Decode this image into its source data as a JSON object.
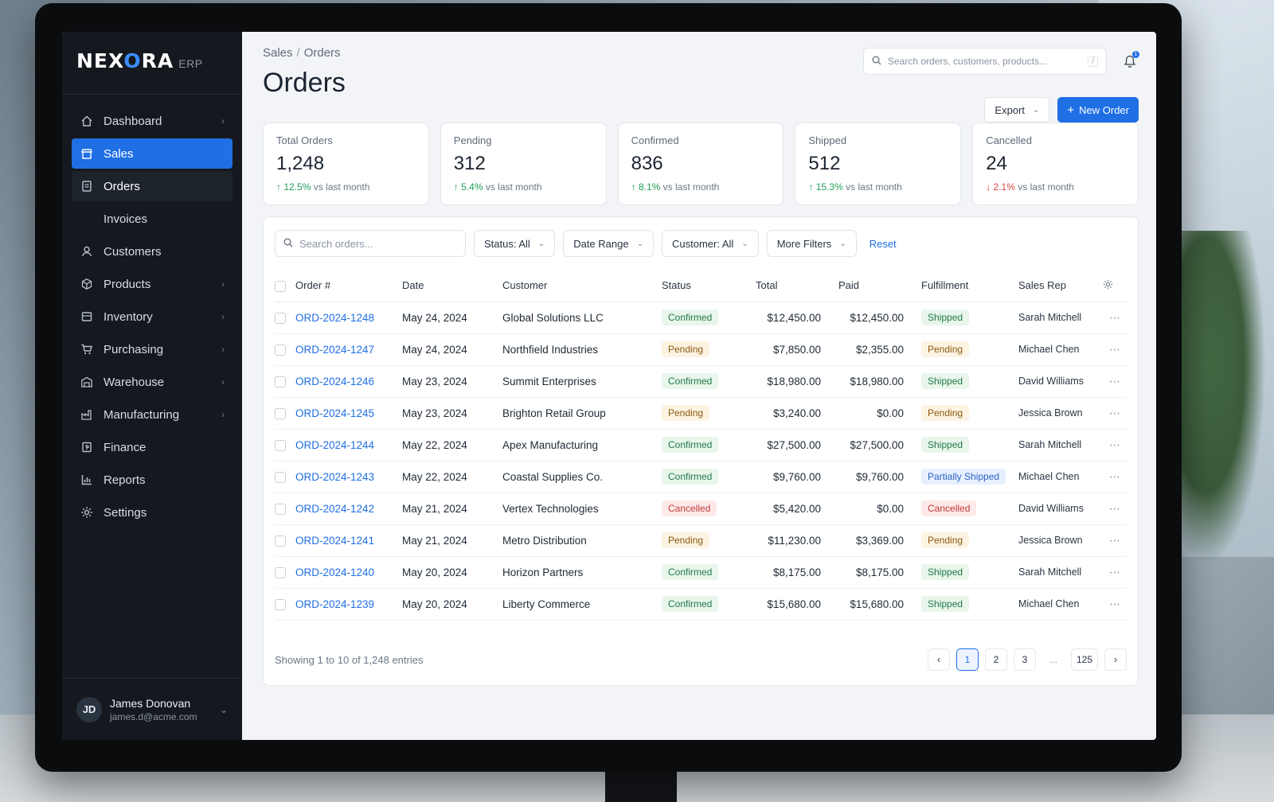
{
  "app": {
    "logo_name_1": "NEX",
    "logo_name_o": "O",
    "logo_name_2": "RA",
    "logo_sub": "ERP"
  },
  "sidebar": {
    "items": [
      {
        "label": "Dashboard",
        "icon": "home-icon"
      },
      {
        "label": "Sales",
        "icon": "store-icon"
      },
      {
        "label": "Orders",
        "icon": "document-icon"
      },
      {
        "label": "Invoices",
        "icon": ""
      },
      {
        "label": "Customers",
        "icon": "user-icon"
      },
      {
        "label": "Products",
        "icon": "box-icon"
      },
      {
        "label": "Inventory",
        "icon": "inventory-icon"
      },
      {
        "label": "Purchasing",
        "icon": "cart-icon"
      },
      {
        "label": "Warehouse",
        "icon": "warehouse-icon"
      },
      {
        "label": "Manufacturing",
        "icon": "factory-icon"
      },
      {
        "label": "Finance",
        "icon": "bank-icon"
      },
      {
        "label": "Reports",
        "icon": "chart-icon"
      },
      {
        "label": "Settings",
        "icon": "gear-icon"
      }
    ],
    "user": {
      "initials": "JD",
      "name": "James Donovan",
      "email": "james.d@acme.com"
    }
  },
  "header": {
    "breadcrumb_parent": "Sales",
    "breadcrumb_sep": "/",
    "breadcrumb_current": "Orders",
    "title": "Orders",
    "search_placeholder": "Search orders, customers, products...",
    "search_shortcut": "/",
    "notifications": "1",
    "export_label": "Export",
    "new_order_label": "New Order"
  },
  "stats": [
    {
      "label": "Total Orders",
      "value": "1,248",
      "trend": "12.5%",
      "trend_dir": "up",
      "suffix": "vs last month"
    },
    {
      "label": "Pending",
      "value": "312",
      "trend": "5.4%",
      "trend_dir": "up",
      "suffix": "vs last month"
    },
    {
      "label": "Confirmed",
      "value": "836",
      "trend": "8.1%",
      "trend_dir": "up",
      "suffix": "vs last month"
    },
    {
      "label": "Shipped",
      "value": "512",
      "trend": "15.3%",
      "trend_dir": "up",
      "suffix": "vs last month"
    },
    {
      "label": "Cancelled",
      "value": "24",
      "trend": "2.1%",
      "trend_dir": "down",
      "suffix": "vs last month"
    }
  ],
  "filters": {
    "search_placeholder": "Search orders...",
    "status": "Status: All",
    "date_range": "Date Range",
    "customer": "Customer: All",
    "more": "More Filters",
    "reset": "Reset"
  },
  "table": {
    "columns": [
      "Order #",
      "Date",
      "Customer",
      "Status",
      "Total",
      "Paid",
      "Fulfillment",
      "Sales Rep"
    ],
    "rows": [
      {
        "order": "ORD-2024-1248",
        "date": "May 24, 2024",
        "customer": "Global Solutions LLC",
        "status": "Confirmed",
        "total": "$12,450.00",
        "paid": "$12,450.00",
        "fulfillment": "Shipped",
        "rep": "Sarah Mitchell"
      },
      {
        "order": "ORD-2024-1247",
        "date": "May 24, 2024",
        "customer": "Northfield Industries",
        "status": "Pending",
        "total": "$7,850.00",
        "paid": "$2,355.00",
        "fulfillment": "Pending",
        "rep": "Michael Chen"
      },
      {
        "order": "ORD-2024-1246",
        "date": "May 23, 2024",
        "customer": "Summit Enterprises",
        "status": "Confirmed",
        "total": "$18,980.00",
        "paid": "$18,980.00",
        "fulfillment": "Shipped",
        "rep": "David Williams"
      },
      {
        "order": "ORD-2024-1245",
        "date": "May 23, 2024",
        "customer": "Brighton Retail Group",
        "status": "Pending",
        "total": "$3,240.00",
        "paid": "$0.00",
        "fulfillment": "Pending",
        "rep": "Jessica Brown"
      },
      {
        "order": "ORD-2024-1244",
        "date": "May 22, 2024",
        "customer": "Apex Manufacturing",
        "status": "Confirmed",
        "total": "$27,500.00",
        "paid": "$27,500.00",
        "fulfillment": "Shipped",
        "rep": "Sarah Mitchell"
      },
      {
        "order": "ORD-2024-1243",
        "date": "May 22, 2024",
        "customer": "Coastal Supplies Co.",
        "status": "Confirmed",
        "total": "$9,760.00",
        "paid": "$9,760.00",
        "fulfillment": "Partially Shipped",
        "rep": "Michael Chen"
      },
      {
        "order": "ORD-2024-1242",
        "date": "May 21, 2024",
        "customer": "Vertex Technologies",
        "status": "Cancelled",
        "total": "$5,420.00",
        "paid": "$0.00",
        "fulfillment": "Cancelled",
        "rep": "David Williams"
      },
      {
        "order": "ORD-2024-1241",
        "date": "May 21, 2024",
        "customer": "Metro Distribution",
        "status": "Pending",
        "total": "$11,230.00",
        "paid": "$3,369.00",
        "fulfillment": "Pending",
        "rep": "Jessica Brown"
      },
      {
        "order": "ORD-2024-1240",
        "date": "May 20, 2024",
        "customer": "Horizon Partners",
        "status": "Confirmed",
        "total": "$8,175.00",
        "paid": "$8,175.00",
        "fulfillment": "Shipped",
        "rep": "Sarah Mitchell"
      },
      {
        "order": "ORD-2024-1239",
        "date": "May 20, 2024",
        "customer": "Liberty Commerce",
        "status": "Confirmed",
        "total": "$15,680.00",
        "paid": "$15,680.00",
        "fulfillment": "Shipped",
        "rep": "Michael Chen"
      }
    ]
  },
  "footer": {
    "showing": "Showing 1 to 10 of 1,248 entries",
    "pages": [
      "1",
      "2",
      "3",
      "...",
      "125"
    ],
    "current_page": "1"
  }
}
